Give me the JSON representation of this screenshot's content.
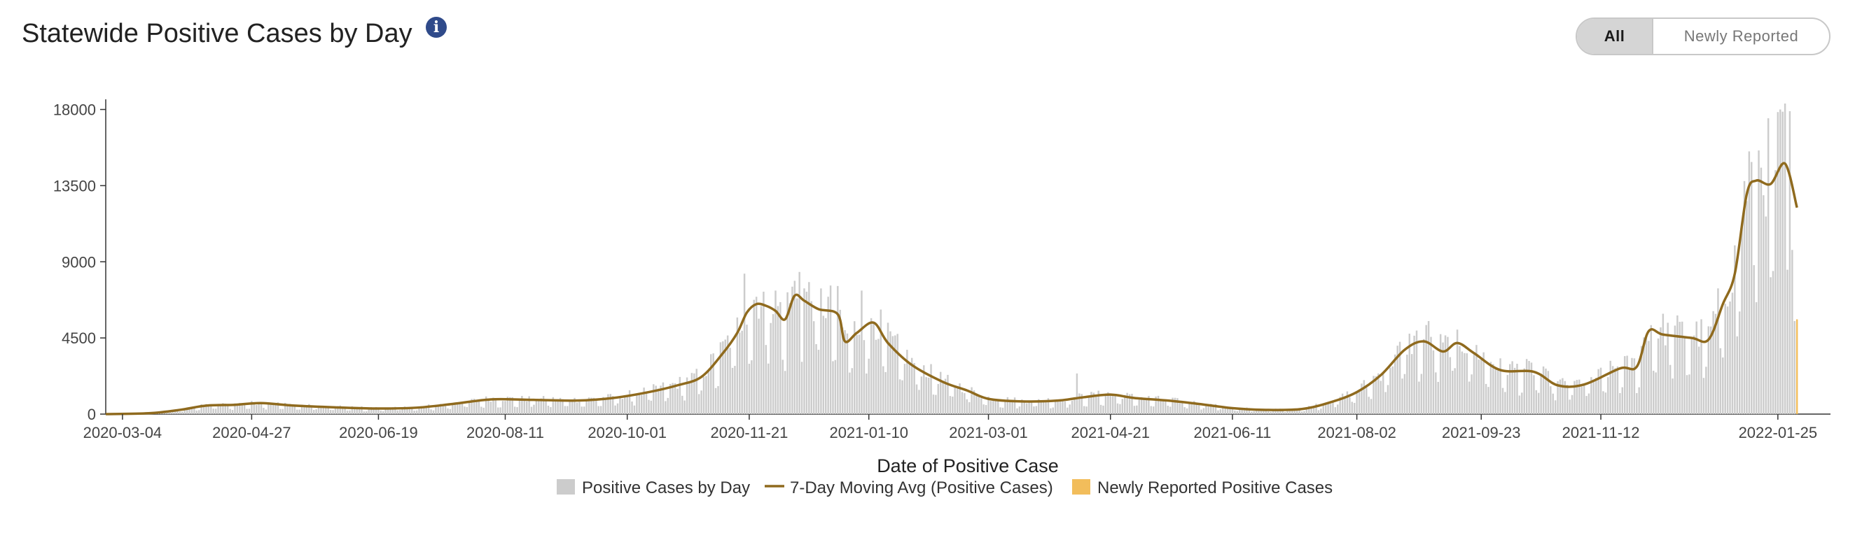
{
  "header": {
    "title": "Statewide Positive Cases by Day",
    "info_icon": "info-icon"
  },
  "toggle": {
    "all_label": "All",
    "newly_label": "Newly Reported",
    "selected": "All"
  },
  "colors": {
    "bars": "#cccccc",
    "moving_avg": "#8f6a1e",
    "newly_reported": "#f2bd5b",
    "info_icon": "#2f4a8a"
  },
  "chart_data": {
    "type": "bar",
    "title": "Statewide Positive Cases by Day",
    "xlabel": "Date of Positive Case",
    "ylabel": "",
    "ylim": [
      0,
      18600
    ],
    "xlim": [
      "2020-02-26",
      "2022-02-16"
    ],
    "y_ticks": [
      0,
      4500,
      9000,
      13500,
      18000
    ],
    "x_ticks": [
      "2020-03-04",
      "2020-04-27",
      "2020-06-19",
      "2020-08-11",
      "2020-10-01",
      "2020-11-21",
      "2021-01-10",
      "2021-03-01",
      "2021-04-21",
      "2021-06-11",
      "2021-08-02",
      "2021-09-23",
      "2021-11-12",
      "2022-01-25"
    ],
    "legend": {
      "placement": "bottom",
      "entries": [
        "Positive Cases by Day",
        "7-Day Moving Avg (Positive Cases)",
        "Newly Reported Positive Cases"
      ]
    },
    "series": [
      {
        "name": "7-Day Moving Avg (Positive Cases)",
        "type": "line",
        "points": [
          [
            "2020-02-26",
            0
          ],
          [
            "2020-03-15",
            50
          ],
          [
            "2020-03-28",
            250
          ],
          [
            "2020-04-08",
            500
          ],
          [
            "2020-04-20",
            550
          ],
          [
            "2020-05-01",
            650
          ],
          [
            "2020-05-15",
            500
          ],
          [
            "2020-06-01",
            400
          ],
          [
            "2020-06-19",
            330
          ],
          [
            "2020-07-05",
            380
          ],
          [
            "2020-07-20",
            600
          ],
          [
            "2020-08-05",
            870
          ],
          [
            "2020-08-20",
            850
          ],
          [
            "2020-09-10",
            800
          ],
          [
            "2020-09-25",
            950
          ],
          [
            "2020-10-10",
            1300
          ],
          [
            "2020-10-22",
            1700
          ],
          [
            "2020-11-01",
            2200
          ],
          [
            "2020-11-10",
            3600
          ],
          [
            "2020-11-16",
            4800
          ],
          [
            "2020-11-20",
            6000
          ],
          [
            "2020-11-24",
            6500
          ],
          [
            "2020-11-28",
            6400
          ],
          [
            "2020-12-02",
            6100
          ],
          [
            "2020-12-06",
            5600
          ],
          [
            "2020-12-10",
            7000
          ],
          [
            "2020-12-14",
            6700
          ],
          [
            "2020-12-20",
            6200
          ],
          [
            "2020-12-28",
            5900
          ],
          [
            "2020-12-31",
            4300
          ],
          [
            "2021-01-05",
            4800
          ],
          [
            "2021-01-12",
            5400
          ],
          [
            "2021-01-18",
            4200
          ],
          [
            "2021-01-28",
            2900
          ],
          [
            "2021-02-10",
            1900
          ],
          [
            "2021-02-20",
            1400
          ],
          [
            "2021-03-01",
            900
          ],
          [
            "2021-03-15",
            750
          ],
          [
            "2021-03-30",
            800
          ],
          [
            "2021-04-10",
            1000
          ],
          [
            "2021-04-21",
            1150
          ],
          [
            "2021-05-01",
            950
          ],
          [
            "2021-05-15",
            800
          ],
          [
            "2021-05-28",
            600
          ],
          [
            "2021-06-11",
            350
          ],
          [
            "2021-06-25",
            250
          ],
          [
            "2021-07-10",
            300
          ],
          [
            "2021-07-22",
            700
          ],
          [
            "2021-08-02",
            1300
          ],
          [
            "2021-08-12",
            2300
          ],
          [
            "2021-08-22",
            3800
          ],
          [
            "2021-08-30",
            4300
          ],
          [
            "2021-09-07",
            3700
          ],
          [
            "2021-09-13",
            4200
          ],
          [
            "2021-09-20",
            3600
          ],
          [
            "2021-10-01",
            2600
          ],
          [
            "2021-10-15",
            2500
          ],
          [
            "2021-10-25",
            1700
          ],
          [
            "2021-11-05",
            1750
          ],
          [
            "2021-11-20",
            2700
          ],
          [
            "2021-11-27",
            2800
          ],
          [
            "2021-12-02",
            4900
          ],
          [
            "2021-12-08",
            4700
          ],
          [
            "2021-12-20",
            4500
          ],
          [
            "2021-12-27",
            4400
          ],
          [
            "2022-01-02",
            6500
          ],
          [
            "2022-01-07",
            8300
          ],
          [
            "2022-01-12",
            13000
          ],
          [
            "2022-01-16",
            13800
          ],
          [
            "2022-01-22",
            13600
          ],
          [
            "2022-01-28",
            14800
          ],
          [
            "2022-02-02",
            12200
          ]
        ]
      },
      {
        "name": "Positive Cases by Day",
        "type": "bar",
        "daily_values_from_moving_avg": true,
        "peaks": [
          [
            "2020-11-19",
            8300
          ],
          [
            "2020-12-12",
            8400
          ],
          [
            "2021-01-07",
            7300
          ],
          [
            "2021-04-07",
            2400
          ],
          [
            "2021-09-01",
            5500
          ],
          [
            "2022-01-26",
            18000
          ],
          [
            "2022-01-30",
            17900
          ],
          [
            "2022-01-31",
            9700
          ],
          [
            "2022-02-01",
            5500
          ]
        ]
      },
      {
        "name": "Newly Reported Positive Cases",
        "type": "bar",
        "points": [
          [
            "2022-02-02",
            5600
          ]
        ]
      }
    ]
  }
}
